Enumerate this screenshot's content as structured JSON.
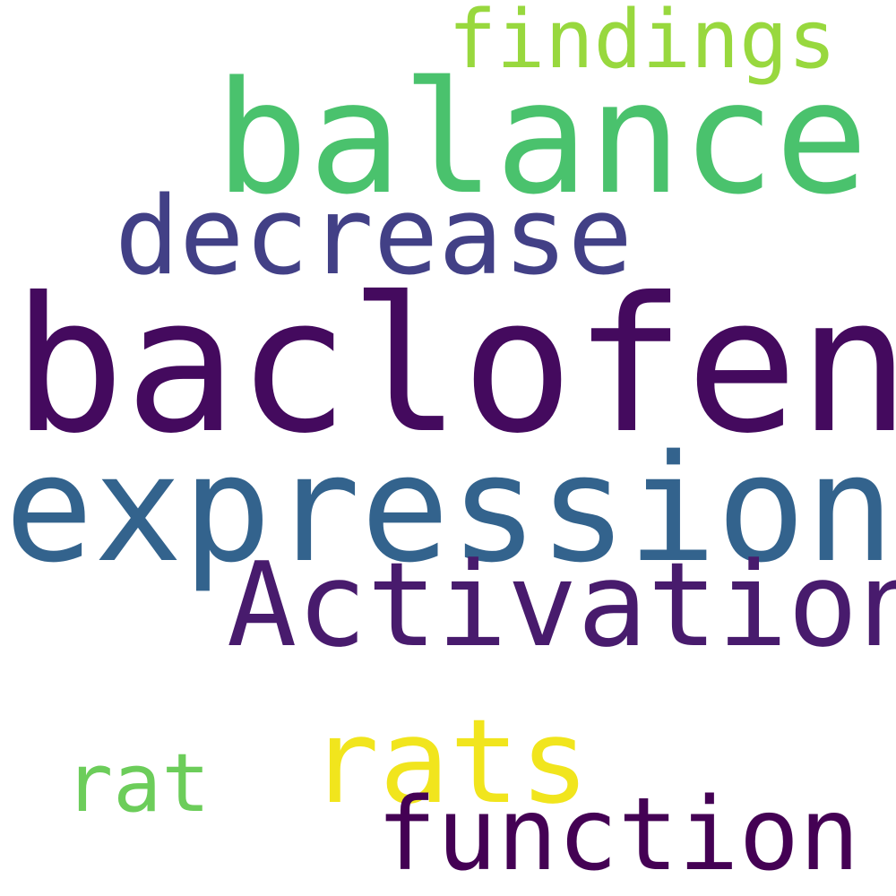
{
  "words": [
    {
      "id": "findings",
      "text": "findings",
      "color": "#98d83e"
    },
    {
      "id": "balance",
      "text": "balance",
      "color": "#4ac26d"
    },
    {
      "id": "decrease",
      "text": "decrease",
      "color": "#424086"
    },
    {
      "id": "baclofen",
      "text": "baclofen",
      "color": "#440a5e"
    },
    {
      "id": "expression",
      "text": "expression",
      "color": "#33638d"
    },
    {
      "id": "Activation",
      "text": "Activation",
      "color": "#481b6d"
    },
    {
      "id": "rats",
      "text": "rats",
      "color": "#f1e51d"
    },
    {
      "id": "rat",
      "text": "rat",
      "color": "#6ccd5a"
    },
    {
      "id": "function",
      "text": "function",
      "color": "#440154"
    }
  ]
}
